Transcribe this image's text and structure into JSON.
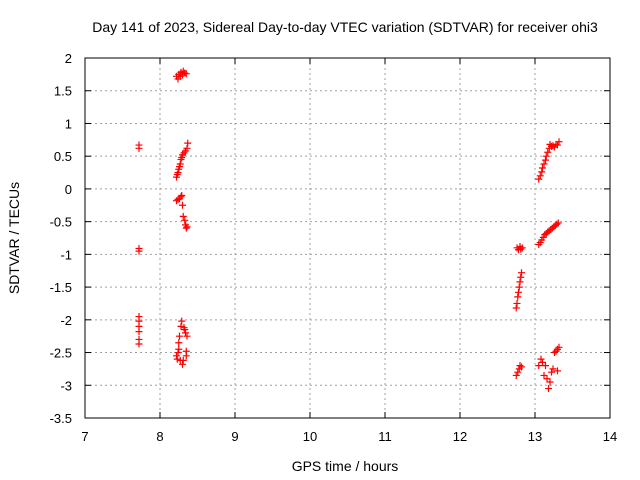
{
  "chart_data": {
    "type": "scatter",
    "title": "Day 141 of 2023, Sidereal Day-to-day VTEC variation (SDTVAR) for receiver ohi3",
    "xlabel": "GPS time / hours",
    "ylabel": "SDTVAR / TECUs",
    "xlim": [
      7,
      14
    ],
    "ylim": [
      -3.5,
      2
    ],
    "xticks": [
      7,
      8,
      9,
      10,
      11,
      12,
      13,
      14
    ],
    "yticks": [
      -3.5,
      -3,
      -2.5,
      -2,
      -1.5,
      -1,
      -0.5,
      0,
      0.5,
      1,
      1.5,
      2
    ],
    "xtick_labels": [
      "7",
      "8",
      "9",
      "10",
      "11",
      "12",
      "13",
      "14"
    ],
    "ytick_labels": [
      "-3.5",
      "-3",
      "-2.5",
      "-2",
      "-1.5",
      "-1",
      "-0.5",
      "0",
      "0.5",
      "1",
      "1.5",
      "2"
    ],
    "grid": true,
    "marker": "+",
    "series": [
      {
        "name": "SDTVAR",
        "color": "#ff0000",
        "points": [
          [
            7.72,
            0.67
          ],
          [
            7.72,
            0.62
          ],
          [
            7.72,
            -0.91
          ],
          [
            7.72,
            -0.95
          ],
          [
            7.72,
            -1.95
          ],
          [
            7.72,
            -2.02
          ],
          [
            7.72,
            -2.1
          ],
          [
            7.72,
            -2.18
          ],
          [
            7.72,
            -2.3
          ],
          [
            7.72,
            -2.37
          ],
          [
            8.22,
            1.72
          ],
          [
            8.24,
            1.68
          ],
          [
            8.25,
            1.75
          ],
          [
            8.27,
            1.72
          ],
          [
            8.28,
            1.78
          ],
          [
            8.3,
            1.74
          ],
          [
            8.31,
            1.8
          ],
          [
            8.33,
            1.77
          ],
          [
            8.35,
            1.76
          ],
          [
            8.22,
            0.18
          ],
          [
            8.23,
            0.22
          ],
          [
            8.24,
            0.25
          ],
          [
            8.25,
            0.3
          ],
          [
            8.26,
            0.34
          ],
          [
            8.27,
            0.38
          ],
          [
            8.28,
            0.45
          ],
          [
            8.29,
            0.48
          ],
          [
            8.3,
            0.52
          ],
          [
            8.32,
            0.55
          ],
          [
            8.34,
            0.58
          ],
          [
            8.36,
            0.62
          ],
          [
            8.37,
            0.7
          ],
          [
            8.22,
            -0.18
          ],
          [
            8.24,
            -0.16
          ],
          [
            8.26,
            -0.15
          ],
          [
            8.28,
            -0.12
          ],
          [
            8.29,
            -0.1
          ],
          [
            8.3,
            -0.25
          ],
          [
            8.31,
            -0.42
          ],
          [
            8.33,
            -0.48
          ],
          [
            8.34,
            -0.55
          ],
          [
            8.35,
            -0.6
          ],
          [
            8.36,
            -0.58
          ],
          [
            8.22,
            -2.55
          ],
          [
            8.23,
            -2.6
          ],
          [
            8.24,
            -2.5
          ],
          [
            8.25,
            -2.45
          ],
          [
            8.25,
            -2.35
          ],
          [
            8.26,
            -2.25
          ],
          [
            8.27,
            -2.62
          ],
          [
            8.28,
            -2.1
          ],
          [
            8.29,
            -2.02
          ],
          [
            8.3,
            -2.68
          ],
          [
            8.31,
            -2.62
          ],
          [
            8.32,
            -2.12
          ],
          [
            8.33,
            -2.15
          ],
          [
            8.34,
            -2.2
          ],
          [
            8.35,
            -2.55
          ],
          [
            8.35,
            -2.48
          ],
          [
            8.36,
            -2.25
          ],
          [
            12.75,
            -1.82
          ],
          [
            12.76,
            -1.75
          ],
          [
            12.77,
            -1.65
          ],
          [
            12.78,
            -1.58
          ],
          [
            12.79,
            -1.5
          ],
          [
            12.8,
            -1.42
          ],
          [
            12.81,
            -1.35
          ],
          [
            12.82,
            -1.28
          ],
          [
            12.76,
            -0.9
          ],
          [
            12.78,
            -0.93
          ],
          [
            12.8,
            -0.88
          ],
          [
            12.81,
            -0.92
          ],
          [
            12.83,
            -0.9
          ],
          [
            12.75,
            -2.85
          ],
          [
            12.77,
            -2.8
          ],
          [
            12.79,
            -2.75
          ],
          [
            12.8,
            -2.7
          ],
          [
            12.82,
            -2.72
          ],
          [
            13.05,
            0.15
          ],
          [
            13.07,
            0.2
          ],
          [
            13.09,
            0.26
          ],
          [
            13.1,
            0.32
          ],
          [
            13.12,
            0.38
          ],
          [
            13.14,
            0.44
          ],
          [
            13.15,
            0.5
          ],
          [
            13.17,
            0.56
          ],
          [
            13.19,
            0.62
          ],
          [
            13.2,
            0.68
          ],
          [
            13.22,
            0.65
          ],
          [
            13.24,
            0.66
          ],
          [
            13.26,
            0.64
          ],
          [
            13.28,
            0.68
          ],
          [
            13.3,
            0.67
          ],
          [
            13.32,
            0.72
          ],
          [
            13.05,
            -0.85
          ],
          [
            13.07,
            -0.82
          ],
          [
            13.09,
            -0.78
          ],
          [
            13.11,
            -0.74
          ],
          [
            13.13,
            -0.7
          ],
          [
            13.15,
            -0.68
          ],
          [
            13.17,
            -0.66
          ],
          [
            13.19,
            -0.64
          ],
          [
            13.21,
            -0.62
          ],
          [
            13.23,
            -0.6
          ],
          [
            13.25,
            -0.58
          ],
          [
            13.27,
            -0.56
          ],
          [
            13.29,
            -0.54
          ],
          [
            13.31,
            -0.52
          ],
          [
            13.05,
            -2.7
          ],
          [
            13.08,
            -2.6
          ],
          [
            13.1,
            -2.65
          ],
          [
            13.12,
            -2.85
          ],
          [
            13.14,
            -2.7
          ],
          [
            13.16,
            -2.9
          ],
          [
            13.18,
            -3.05
          ],
          [
            13.2,
            -2.95
          ],
          [
            13.22,
            -2.8
          ],
          [
            13.24,
            -2.75
          ],
          [
            13.26,
            -2.5
          ],
          [
            13.28,
            -2.48
          ],
          [
            13.3,
            -2.45
          ],
          [
            13.32,
            -2.42
          ],
          [
            13.3,
            -2.78
          ]
        ]
      }
    ]
  }
}
